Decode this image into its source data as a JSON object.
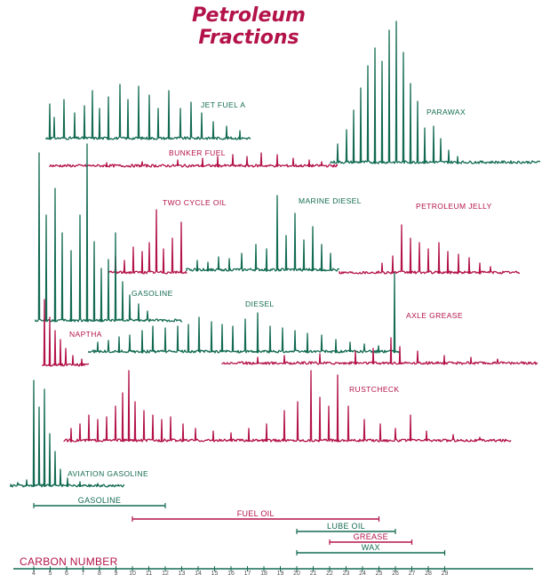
{
  "colors": {
    "green": "#136b52",
    "magenta": "#b3134a"
  },
  "chart_data": {
    "type": "line",
    "title_lines": [
      "Petroleum",
      "Fractions"
    ],
    "xlabel": "CARBON NUMBER",
    "series": [
      {
        "name": "JET FUEL A",
        "color": "green"
      },
      {
        "name": "PARAWAX",
        "color": "green"
      },
      {
        "name": "BUNKER FUEL",
        "color": "magenta"
      },
      {
        "name": "TWO CYCLE OIL",
        "color": "magenta"
      },
      {
        "name": "MARINE DIESEL",
        "color": "green"
      },
      {
        "name": "PETROLEUM JELLY",
        "color": "magenta"
      },
      {
        "name": "GASOLINE",
        "color": "green"
      },
      {
        "name": "DIESEL",
        "color": "green"
      },
      {
        "name": "NAPTHA",
        "color": "magenta"
      },
      {
        "name": "AXLE GREASE",
        "color": "magenta"
      },
      {
        "name": "RUSTCHECK",
        "color": "magenta"
      },
      {
        "name": "AVIATION GASOLINE",
        "color": "green"
      }
    ],
    "ranges": [
      {
        "label": "GASOLINE",
        "start": 4,
        "end": 12,
        "color": "green"
      },
      {
        "label": "FUEL OIL",
        "start": 10,
        "end": 25,
        "color": "magenta"
      },
      {
        "label": "LUBE OIL",
        "start": 20,
        "end": 26,
        "color": "green"
      },
      {
        "label": "GREASE",
        "start": 22,
        "end": 27,
        "color": "magenta"
      },
      {
        "label": "WAX",
        "start": 20,
        "end": 29,
        "color": "green"
      }
    ],
    "x_ticks": [
      "4",
      "5",
      "6",
      "7",
      "8",
      "9",
      "10",
      "11",
      "12",
      "13",
      "14",
      "15",
      "16",
      "17",
      "18",
      "19",
      "20",
      "21",
      "22",
      "23",
      "24",
      "25",
      "26",
      "27",
      "28",
      "29"
    ]
  }
}
